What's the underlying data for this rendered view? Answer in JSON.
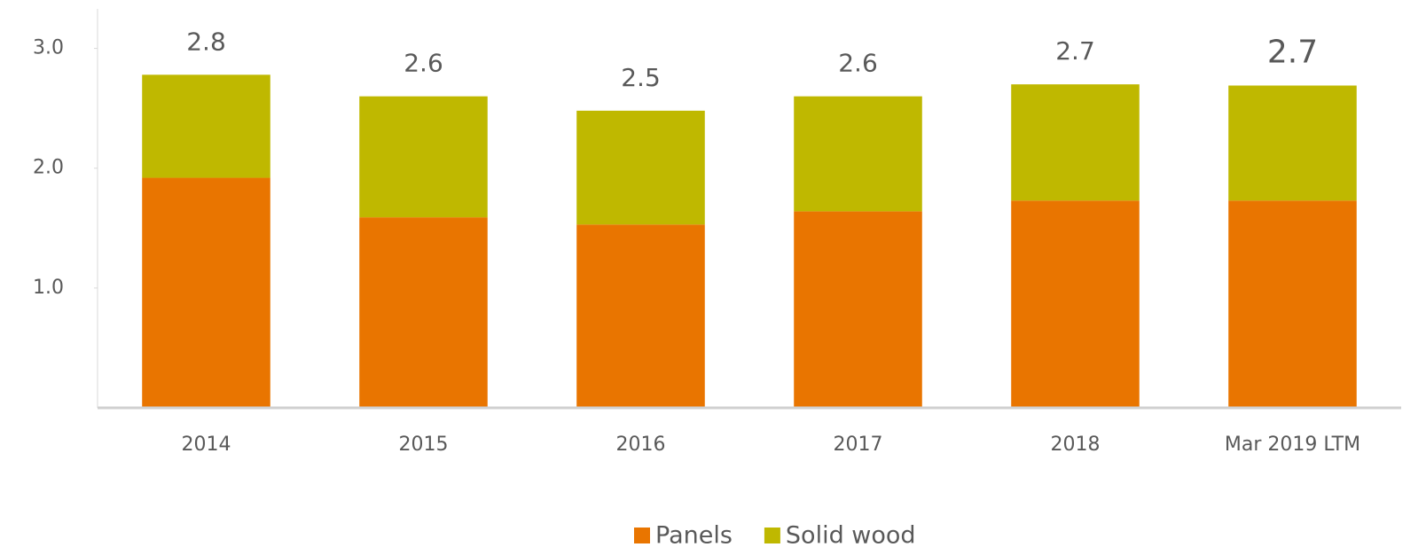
{
  "chart_data": {
    "type": "stacked_bar",
    "categories": [
      "2014",
      "2015",
      "2016",
      "2017",
      "2018",
      "Mar 2019 LTM"
    ],
    "series": [
      {
        "name": "Panels",
        "color": "#e97500",
        "values": [
          1.92,
          1.59,
          1.53,
          1.64,
          1.73,
          1.73
        ]
      },
      {
        "name": "Solid wood",
        "color": "#bfb800",
        "values": [
          0.86,
          1.01,
          0.95,
          0.96,
          0.97,
          0.96
        ]
      }
    ],
    "totals": [
      2.8,
      2.6,
      2.5,
      2.6,
      2.7,
      2.7
    ],
    "ylim": [
      0,
      3.33
    ],
    "yticks": [
      {
        "value": 1,
        "label": "1.0"
      },
      {
        "value": 2,
        "label": "2.0"
      },
      {
        "value": 3,
        "label": "3.0"
      }
    ],
    "legend": "bottom"
  }
}
